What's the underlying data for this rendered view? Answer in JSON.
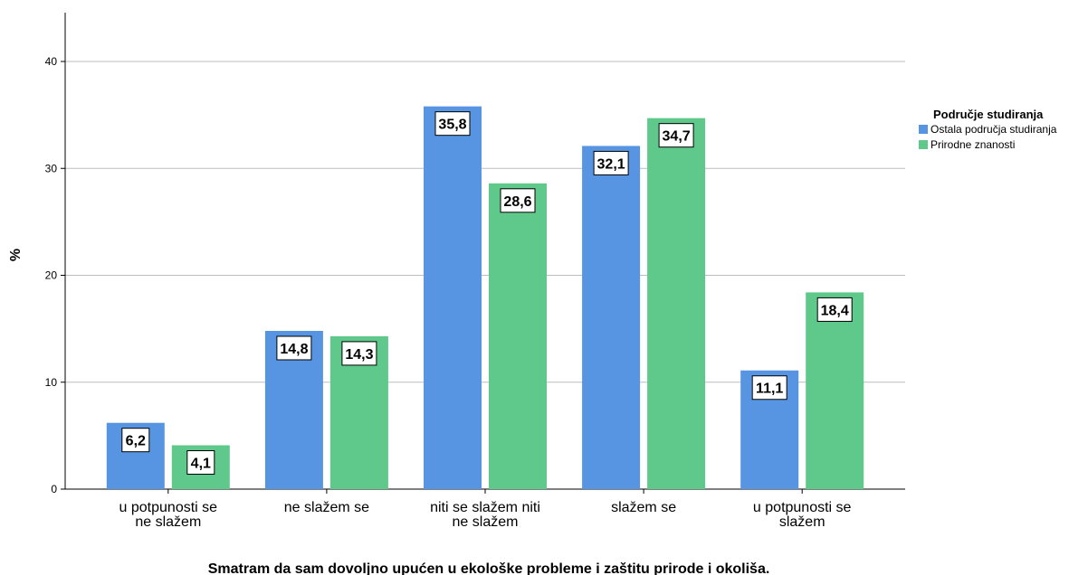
{
  "chart_data": {
    "type": "bar",
    "categories": [
      [
        "u potpunosti se",
        "ne slažem"
      ],
      [
        "ne slažem se"
      ],
      [
        "niti se slažem niti",
        "ne slažem"
      ],
      [
        "slažem se"
      ],
      [
        "u potpunosti se",
        "slažem"
      ]
    ],
    "series": [
      {
        "name": "Ostala područja studiranja",
        "color": "#5795e3",
        "values": [
          6.2,
          14.8,
          35.8,
          32.1,
          11.1
        ],
        "labels": [
          "6,2",
          "14,8",
          "35,8",
          "32,1",
          "11,1"
        ]
      },
      {
        "name": "Prirodne znanosti",
        "color": "#5ec98a",
        "values": [
          4.1,
          14.3,
          28.6,
          34.7,
          18.4
        ],
        "labels": [
          "4,1",
          "14,3",
          "28,6",
          "34,7",
          "18,4"
        ]
      }
    ],
    "yticks": [
      0,
      10,
      20,
      30,
      40
    ],
    "ylim": [
      0,
      44
    ],
    "ylabel": "%",
    "xlabel": "Smatram da sam dovoljno upućen u ekološke probleme i zaštitu prirode i okoliša.",
    "legend": {
      "title": "Područje studiranja",
      "placement": "right"
    },
    "grid": true
  }
}
